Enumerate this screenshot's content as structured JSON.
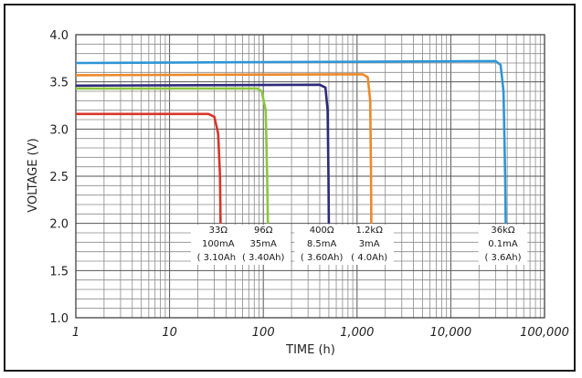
{
  "chart_data": {
    "type": "line",
    "xlabel": "TIME (h)",
    "ylabel": "VOLTAGE (V)",
    "x_scale": "log",
    "xlim": [
      1,
      100000
    ],
    "ylim": [
      1.0,
      4.0
    ],
    "x_ticks": [
      1,
      10,
      100,
      1000,
      10000,
      100000
    ],
    "x_tick_labels": [
      "1",
      "10",
      "100",
      "1,000",
      "10,000",
      "100,000"
    ],
    "y_ticks": [
      1.0,
      1.5,
      2.0,
      2.5,
      3.0,
      3.5,
      4.0
    ],
    "y_tick_labels": [
      "1.0",
      "1.5",
      "2.0",
      "2.5",
      "3.0",
      "3.5",
      "4.0"
    ],
    "grid": true,
    "legend": "none",
    "series": [
      {
        "color": "#d9342b",
        "label_lines": [
          "33Ω",
          "100mA",
          "( 3.10Ah)"
        ],
        "label_x": 33,
        "points": [
          [
            1,
            3.16
          ],
          [
            26,
            3.16
          ],
          [
            30,
            3.13
          ],
          [
            33,
            2.95
          ],
          [
            34.5,
            2.5
          ],
          [
            35,
            2.0
          ]
        ]
      },
      {
        "color": "#8cc63f",
        "label_lines": [
          "96Ω",
          "35mA",
          "( 3.40Ah)"
        ],
        "label_x": 100,
        "points": [
          [
            1,
            3.43
          ],
          [
            86,
            3.43
          ],
          [
            96,
            3.4
          ],
          [
            106,
            3.2
          ],
          [
            110,
            2.5
          ],
          [
            112,
            2.0
          ]
        ]
      },
      {
        "color": "#2e2a7a",
        "label_lines": [
          "400Ω",
          "8.5mA",
          "( 3.60Ah)"
        ],
        "label_x": 420,
        "points": [
          [
            1,
            3.46
          ],
          [
            400,
            3.47
          ],
          [
            460,
            3.44
          ],
          [
            485,
            3.2
          ],
          [
            495,
            2.5
          ],
          [
            500,
            2.0
          ]
        ]
      },
      {
        "color": "#ec8a2a",
        "label_lines": [
          "1.2kΩ",
          "3mA",
          "( 4.0Ah)"
        ],
        "label_x": 1350,
        "points": [
          [
            1,
            3.57
          ],
          [
            1150,
            3.58
          ],
          [
            1300,
            3.55
          ],
          [
            1380,
            3.3
          ],
          [
            1410,
            2.5
          ],
          [
            1420,
            2.0
          ]
        ]
      },
      {
        "color": "#2f95d6",
        "label_lines": [
          "36kΩ",
          "0.1mA",
          "( 3.6Ah)"
        ],
        "label_x": 36000,
        "points": [
          [
            1,
            3.7
          ],
          [
            30000,
            3.72
          ],
          [
            34000,
            3.68
          ],
          [
            36500,
            3.4
          ],
          [
            38000,
            2.5
          ],
          [
            38500,
            2.0
          ]
        ]
      }
    ]
  }
}
